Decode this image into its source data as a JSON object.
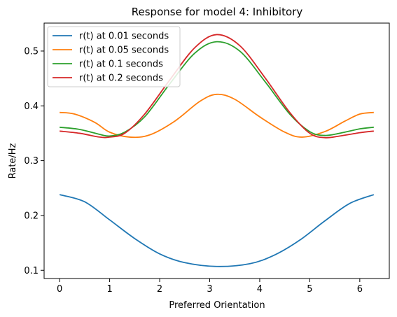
{
  "chart_data": {
    "type": "line",
    "title": "Response for model 4: Inhibitory",
    "xlabel": "Preferred Orientation",
    "ylabel": "Rate/Hz",
    "xlim": [
      -0.31,
      6.59
    ],
    "ylim": [
      0.085,
      0.551
    ],
    "xticks": [
      0,
      1,
      2,
      3,
      4,
      5,
      6
    ],
    "yticks": [
      0.1,
      0.2,
      0.3,
      0.4,
      0.5
    ],
    "xtick_labels": [
      "0",
      "1",
      "2",
      "3",
      "4",
      "5",
      "6"
    ],
    "ytick_labels": [
      "0.1",
      "0.2",
      "0.3",
      "0.4",
      "0.5"
    ],
    "grid": false,
    "legend_position": "upper-left",
    "series": [
      {
        "name": "r(t) at 0.01 seconds",
        "color": "#1f77b4",
        "x": [
          0,
          0.5,
          1.0,
          1.5,
          2.0,
          2.5,
          3.14,
          3.8,
          4.3,
          4.8,
          5.3,
          5.8,
          6.28
        ],
        "y": [
          0.238,
          0.225,
          0.192,
          0.158,
          0.13,
          0.114,
          0.107,
          0.112,
          0.128,
          0.155,
          0.19,
          0.222,
          0.238
        ]
      },
      {
        "name": "r(t) at 0.05 seconds",
        "color": "#ff7f0e",
        "x": [
          0,
          0.3,
          0.7,
          1.0,
          1.4,
          1.8,
          2.3,
          2.8,
          3.14,
          3.5,
          4.0,
          4.5,
          4.85,
          5.3,
          5.7,
          6.0,
          6.28
        ],
        "y": [
          0.388,
          0.385,
          0.37,
          0.352,
          0.343,
          0.347,
          0.372,
          0.408,
          0.421,
          0.412,
          0.38,
          0.352,
          0.343,
          0.353,
          0.372,
          0.385,
          0.388
        ]
      },
      {
        "name": "r(t) at 0.1 seconds",
        "color": "#2ca02c",
        "x": [
          0,
          0.4,
          0.8,
          1.0,
          1.3,
          1.7,
          2.2,
          2.7,
          3.14,
          3.6,
          4.1,
          4.6,
          5.0,
          5.3,
          5.6,
          6.0,
          6.28
        ],
        "y": [
          0.361,
          0.357,
          0.348,
          0.345,
          0.352,
          0.38,
          0.44,
          0.496,
          0.517,
          0.5,
          0.445,
          0.385,
          0.353,
          0.346,
          0.35,
          0.358,
          0.361
        ]
      },
      {
        "name": "r(t) at 0.2 seconds",
        "color": "#d62728",
        "x": [
          0,
          0.4,
          0.8,
          1.0,
          1.3,
          1.7,
          2.2,
          2.7,
          3.14,
          3.6,
          4.1,
          4.6,
          5.0,
          5.3,
          5.6,
          6.0,
          6.28
        ],
        "y": [
          0.354,
          0.35,
          0.343,
          0.343,
          0.35,
          0.385,
          0.447,
          0.506,
          0.53,
          0.51,
          0.452,
          0.388,
          0.35,
          0.342,
          0.345,
          0.351,
          0.354
        ]
      }
    ]
  }
}
